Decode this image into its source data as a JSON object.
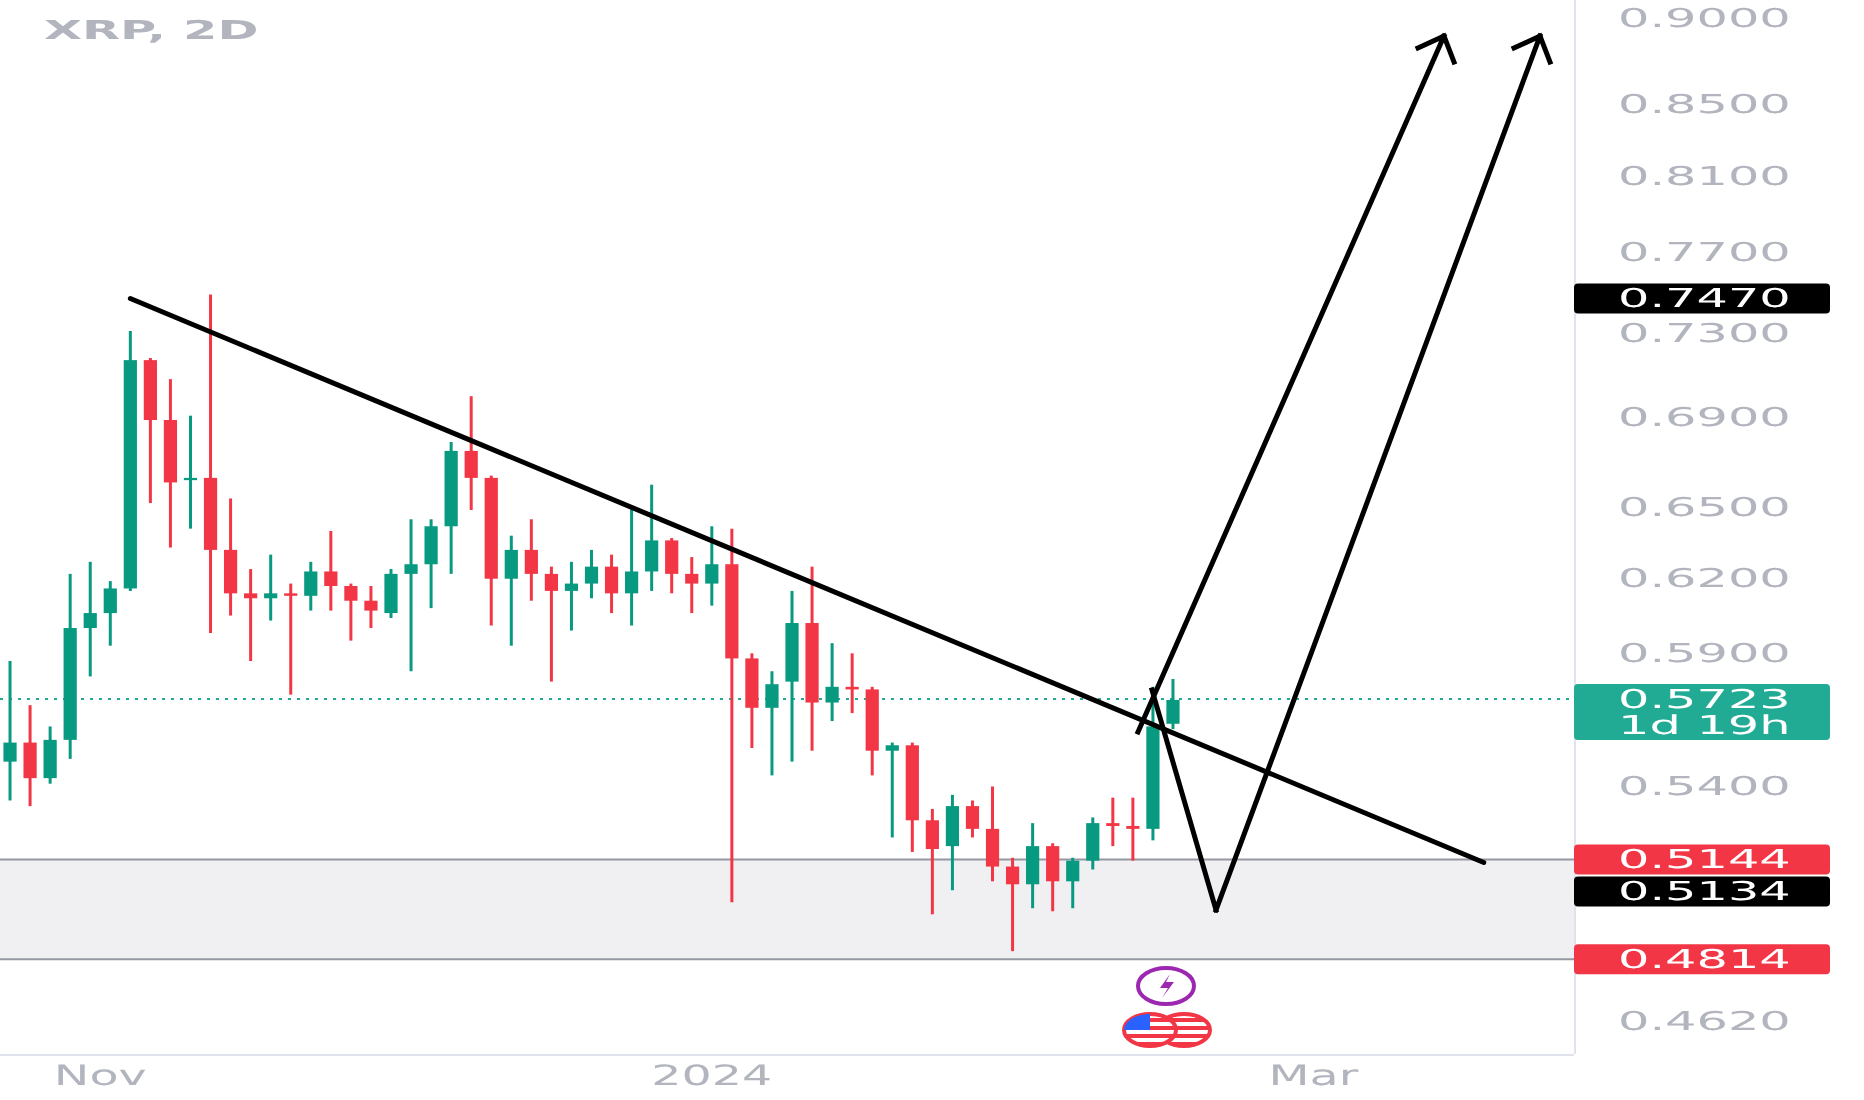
{
  "chart_data": {
    "type": "candlestick",
    "title": "XRP, 2D",
    "x": [
      "2023-10-23",
      "2023-10-25",
      "2023-10-27",
      "2023-10-29",
      "2023-10-31",
      "2023-11-02",
      "2023-11-04",
      "2023-11-06",
      "2023-11-08",
      "2023-11-10",
      "2023-11-12",
      "2023-11-14",
      "2023-11-16",
      "2023-11-18",
      "2023-11-20",
      "2023-11-22",
      "2023-11-24",
      "2023-11-26",
      "2023-11-28",
      "2023-11-30",
      "2023-12-02",
      "2023-12-04",
      "2023-12-06",
      "2023-12-08",
      "2023-12-10",
      "2023-12-12",
      "2023-12-14",
      "2023-12-16",
      "2023-12-18",
      "2023-12-20",
      "2023-12-22",
      "2023-12-24",
      "2023-12-26",
      "2023-12-28",
      "2023-12-30",
      "2024-01-01",
      "2024-01-03",
      "2024-01-05",
      "2024-01-07",
      "2024-01-09",
      "2024-01-11",
      "2024-01-13",
      "2024-01-15",
      "2024-01-17",
      "2024-01-19",
      "2024-01-21",
      "2024-01-23",
      "2024-01-25",
      "2024-01-27",
      "2024-01-29",
      "2024-01-31",
      "2024-02-02",
      "2024-02-04",
      "2024-02-06",
      "2024-02-08",
      "2024-02-10",
      "2024-02-12",
      "2024-02-14",
      "2024-02-16"
    ],
    "ohlc": [
      [
        0.549,
        0.587,
        0.535,
        0.556
      ],
      [
        0.556,
        0.57,
        0.533,
        0.543
      ],
      [
        0.543,
        0.562,
        0.541,
        0.557
      ],
      [
        0.557,
        0.622,
        0.55,
        0.6
      ],
      [
        0.6,
        0.627,
        0.581,
        0.606
      ],
      [
        0.606,
        0.619,
        0.593,
        0.616
      ],
      [
        0.616,
        0.731,
        0.615,
        0.717
      ],
      [
        0.717,
        0.718,
        0.652,
        0.689
      ],
      [
        0.689,
        0.708,
        0.633,
        0.661
      ],
      [
        0.662,
        0.691,
        0.641,
        0.663
      ],
      [
        0.663,
        0.749,
        0.598,
        0.632
      ],
      [
        0.632,
        0.654,
        0.605,
        0.614
      ],
      [
        0.614,
        0.624,
        0.587,
        0.612
      ],
      [
        0.612,
        0.63,
        0.603,
        0.614
      ],
      [
        0.614,
        0.618,
        0.574,
        0.613
      ],
      [
        0.613,
        0.627,
        0.607,
        0.623
      ],
      [
        0.623,
        0.64,
        0.607,
        0.617
      ],
      [
        0.617,
        0.618,
        0.595,
        0.611
      ],
      [
        0.611,
        0.617,
        0.6,
        0.607
      ],
      [
        0.606,
        0.624,
        0.604,
        0.622
      ],
      [
        0.622,
        0.645,
        0.583,
        0.626
      ],
      [
        0.626,
        0.645,
        0.608,
        0.642
      ],
      [
        0.642,
        0.679,
        0.622,
        0.675
      ],
      [
        0.675,
        0.7,
        0.649,
        0.663
      ],
      [
        0.663,
        0.664,
        0.601,
        0.62
      ],
      [
        0.62,
        0.638,
        0.593,
        0.632
      ],
      [
        0.632,
        0.645,
        0.611,
        0.622
      ],
      [
        0.622,
        0.625,
        0.579,
        0.615
      ],
      [
        0.615,
        0.627,
        0.599,
        0.618
      ],
      [
        0.618,
        0.632,
        0.612,
        0.625
      ],
      [
        0.625,
        0.63,
        0.606,
        0.614
      ],
      [
        0.614,
        0.65,
        0.601,
        0.623
      ],
      [
        0.623,
        0.66,
        0.615,
        0.636
      ],
      [
        0.636,
        0.637,
        0.614,
        0.622
      ],
      [
        0.622,
        0.629,
        0.606,
        0.618
      ],
      [
        0.618,
        0.642,
        0.609,
        0.626
      ],
      [
        0.626,
        0.641,
        0.5,
        0.588
      ],
      [
        0.588,
        0.59,
        0.554,
        0.569
      ],
      [
        0.569,
        0.583,
        0.544,
        0.578
      ],
      [
        0.579,
        0.615,
        0.549,
        0.602
      ],
      [
        0.602,
        0.625,
        0.553,
        0.571
      ],
      [
        0.571,
        0.594,
        0.564,
        0.577
      ],
      [
        0.577,
        0.59,
        0.567,
        0.576
      ],
      [
        0.576,
        0.577,
        0.544,
        0.553
      ],
      [
        0.553,
        0.556,
        0.522,
        0.555
      ],
      [
        0.555,
        0.556,
        0.517,
        0.528
      ],
      [
        0.528,
        0.532,
        0.496,
        0.518
      ],
      [
        0.519,
        0.537,
        0.504,
        0.533
      ],
      [
        0.533,
        0.535,
        0.522,
        0.525
      ],
      [
        0.525,
        0.54,
        0.507,
        0.512
      ],
      [
        0.512,
        0.515,
        0.484,
        0.506
      ],
      [
        0.506,
        0.527,
        0.498,
        0.519
      ],
      [
        0.519,
        0.52,
        0.497,
        0.507
      ],
      [
        0.507,
        0.515,
        0.498,
        0.514
      ],
      [
        0.514,
        0.529,
        0.511,
        0.527
      ],
      [
        0.527,
        0.536,
        0.519,
        0.526
      ],
      [
        0.526,
        0.536,
        0.514,
        0.525
      ],
      [
        0.525,
        0.577,
        0.521,
        0.562
      ],
      [
        0.563,
        0.58,
        0.561,
        0.572
      ]
    ],
    "colors": [
      "#089981",
      "#f23645",
      "#089981",
      "#089981",
      "#089981",
      "#089981",
      "#089981",
      "#f23645",
      "#f23645",
      "#089981",
      "#f23645",
      "#f23645",
      "#f23645",
      "#089981",
      "#f23645",
      "#089981",
      "#f23645",
      "#f23645",
      "#f23645",
      "#089981",
      "#089981",
      "#089981",
      "#089981",
      "#f23645",
      "#f23645",
      "#089981",
      "#f23645",
      "#f23645",
      "#089981",
      "#089981",
      "#f23645",
      "#089981",
      "#089981",
      "#f23645",
      "#f23645",
      "#089981",
      "#f23645",
      "#f23645",
      "#089981",
      "#089981",
      "#f23645",
      "#089981",
      "#f23645",
      "#f23645",
      "#089981",
      "#f23645",
      "#f23645",
      "#089981",
      "#f23645",
      "#f23645",
      "#f23645",
      "#089981",
      "#f23645",
      "#089981",
      "#089981",
      "#f23645",
      "#f23645",
      "#089981",
      "#089981"
    ],
    "series": [
      {
        "type": "line",
        "x": [
          "2023-11-04",
          "2024-03-18"
        ],
        "values": [
          0.747,
          0.5134
        ],
        "color": "#000000"
      }
    ],
    "annotations": [
      "0.7470",
      "0.5134"
    ],
    "xlim": [
      "2023-10-22",
      "2024-03-27"
    ],
    "xticks": [
      {
        "value": "2023-11-01",
        "label": "Nov"
      },
      {
        "value": "2024-01-01",
        "label": "2024"
      },
      {
        "value": "2024-03-01",
        "label": "Mar"
      }
    ],
    "ylim": [
      0.452,
      0.911
    ],
    "log": true,
    "yticks": [
      {
        "value": 0.9,
        "label": "0.9000"
      },
      {
        "value": 0.85,
        "label": "0.8500"
      },
      {
        "value": 0.81,
        "label": "0.8100"
      },
      {
        "value": 0.77,
        "label": "0.7700"
      },
      {
        "value": 0.73,
        "label": "0.7300"
      },
      {
        "value": 0.69,
        "label": "0.6900"
      },
      {
        "value": 0.65,
        "label": "0.6500"
      },
      {
        "value": 0.62,
        "label": "0.6200"
      },
      {
        "value": 0.59,
        "label": "0.5900"
      },
      {
        "value": 0.54,
        "label": "0.5400"
      },
      {
        "value": 0.462,
        "label": "0.4620"
      }
    ],
    "bands": [
      {
        "axis": "y",
        "from": 0.4814,
        "to": 0.5144,
        "color": "#f0f0f3"
      }
    ],
    "ref_lines": [
      {
        "axis": "y",
        "value": 0.5723,
        "label": "0.5723\n1d 19h",
        "color": "#22ab94",
        "line_style": "dotted"
      },
      {
        "axis": "y",
        "value": 0.5144,
        "label": "0.5144",
        "color": "#9598a1"
      },
      {
        "axis": "y",
        "value": 0.4814,
        "label": "0.4814",
        "color": "#9598a1"
      }
    ]
  }
}
